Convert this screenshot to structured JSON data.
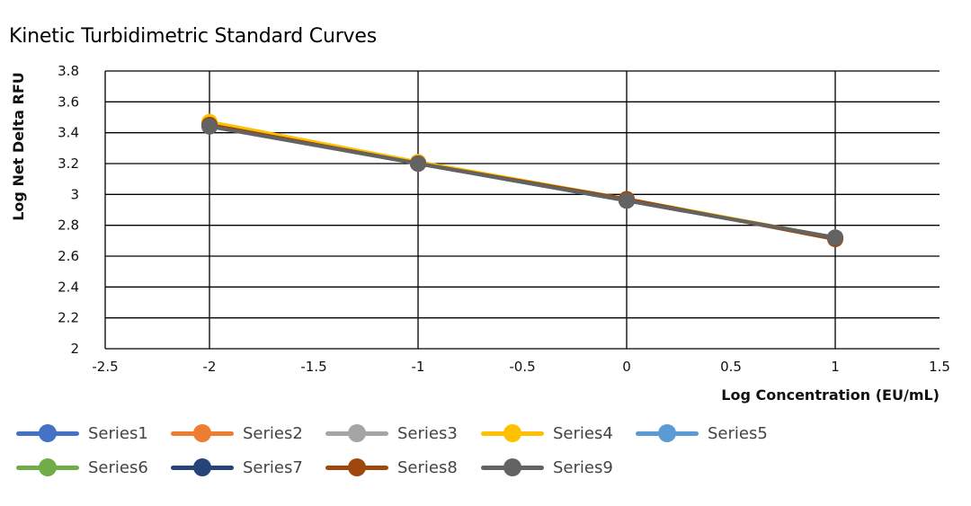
{
  "chart_data": {
    "type": "line",
    "title": "Kinetic Turbidimetric Standard Curves",
    "xlabel": "Log Concentration (EU/mL)",
    "ylabel": "Log Net Delta RFU",
    "xlim": [
      -2.5,
      1.5
    ],
    "ylim": [
      2,
      3.8
    ],
    "x_ticks": [
      "-2.5",
      "-2",
      "-1.5",
      "-1",
      "-0.5",
      "0",
      "0.5",
      "1",
      "1.5"
    ],
    "y_ticks": [
      "3.8",
      "3.6",
      "3.4",
      "3.2",
      "3",
      "2.8",
      "2.6",
      "2.4",
      "2.2",
      "2"
    ],
    "grid": true,
    "legend_position": "bottom",
    "x": [
      -2,
      -1,
      0,
      1
    ],
    "series": [
      {
        "name": "Series1",
        "color": "#4472c4",
        "values": [
          3.45,
          3.2,
          2.96,
          2.72
        ]
      },
      {
        "name": "Series2",
        "color": "#ed7d31",
        "values": [
          3.46,
          3.21,
          2.96,
          2.72
        ]
      },
      {
        "name": "Series3",
        "color": "#a5a5a5",
        "values": [
          3.45,
          3.2,
          2.96,
          2.72
        ]
      },
      {
        "name": "Series4",
        "color": "#ffc000",
        "values": [
          3.47,
          3.21,
          2.97,
          2.72
        ]
      },
      {
        "name": "Series5",
        "color": "#5b9bd5",
        "values": [
          3.45,
          3.2,
          2.96,
          2.72
        ]
      },
      {
        "name": "Series6",
        "color": "#70ad47",
        "values": [
          3.45,
          3.2,
          2.96,
          2.72
        ]
      },
      {
        "name": "Series7",
        "color": "#264478",
        "values": [
          3.45,
          3.2,
          2.96,
          2.72
        ]
      },
      {
        "name": "Series8",
        "color": "#9e480e",
        "values": [
          3.45,
          3.2,
          2.97,
          2.71
        ]
      },
      {
        "name": "Series9",
        "color": "#636363",
        "values": [
          3.44,
          3.2,
          2.96,
          2.72
        ]
      }
    ]
  }
}
